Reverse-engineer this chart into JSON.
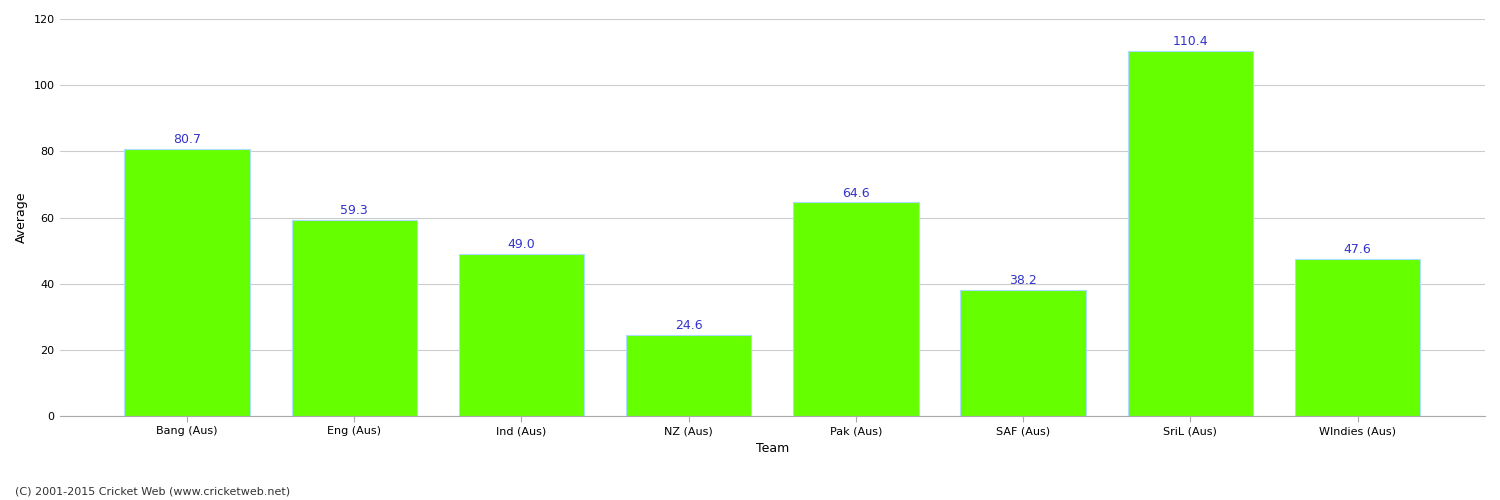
{
  "categories": [
    "Bang (Aus)",
    "Eng (Aus)",
    "Ind (Aus)",
    "NZ (Aus)",
    "Pak (Aus)",
    "SAF (Aus)",
    "SriL (Aus)",
    "WIndies (Aus)"
  ],
  "values": [
    80.7,
    59.3,
    49.0,
    24.6,
    64.6,
    38.2,
    110.4,
    47.6
  ],
  "bar_color": "#66ff00",
  "bar_edge_color": "#aaddff",
  "value_label_color": "#3333cc",
  "value_label_fontsize": 9,
  "xlabel": "Team",
  "ylabel": "Average",
  "ylim": [
    0,
    120
  ],
  "yticks": [
    0,
    20,
    40,
    60,
    80,
    100,
    120
  ],
  "grid_color": "#cccccc",
  "background_color": "#ffffff",
  "footer_text": "(C) 2001-2015 Cricket Web (www.cricketweb.net)",
  "footer_fontsize": 8,
  "footer_color": "#333333",
  "tick_label_fontsize": 8,
  "axis_label_fontsize": 9,
  "bar_width": 0.75
}
